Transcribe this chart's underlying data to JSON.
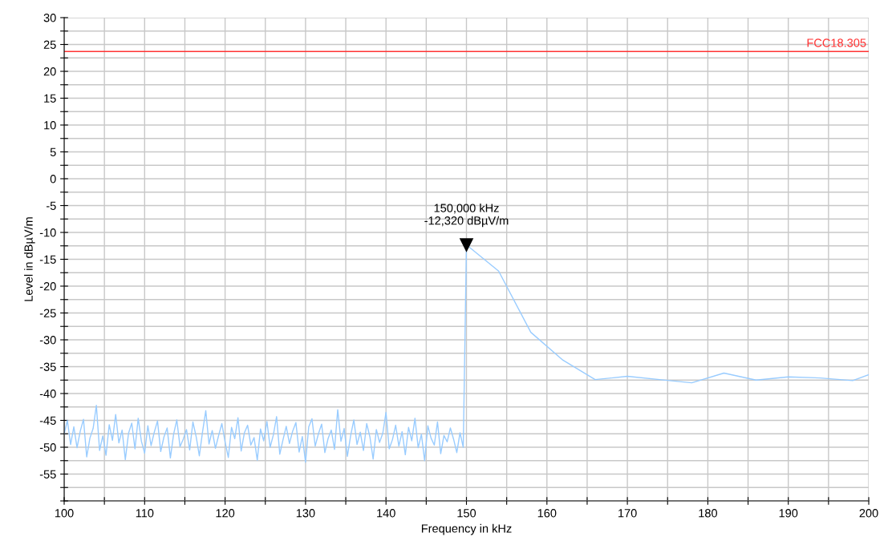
{
  "chart_data": {
    "type": "line",
    "xlabel": "Frequency in kHz",
    "ylabel": "Level in dBµV/m",
    "xlim": [
      100,
      200
    ],
    "xticks": [
      100,
      {
        "value": 105,
        "label": null
      },
      110,
      {
        "value": 115,
        "label": null
      },
      120,
      {
        "value": 125,
        "label": null
      },
      130,
      {
        "value": 135,
        "label": null
      },
      140,
      {
        "value": 145,
        "label": null
      },
      150,
      {
        "value": 155,
        "label": null
      },
      160,
      {
        "value": 165,
        "label": null
      },
      170,
      {
        "value": 175,
        "label": null
      },
      180,
      {
        "value": 185,
        "label": null
      },
      190,
      {
        "value": 195,
        "label": null
      },
      200
    ],
    "ylim": [
      -60,
      30
    ],
    "yticks": [
      {
        "value": -60,
        "label": null
      },
      {
        "value": -57.5,
        "label": null
      },
      -55,
      {
        "value": -52.5,
        "label": null
      },
      -50,
      {
        "value": -47.5,
        "label": null
      },
      -45,
      {
        "value": -42.5,
        "label": null
      },
      -40,
      {
        "value": -37.5,
        "label": null
      },
      -35,
      {
        "value": -32.5,
        "label": null
      },
      -30,
      {
        "value": -27.5,
        "label": null
      },
      -25,
      {
        "value": -22.5,
        "label": null
      },
      -20,
      {
        "value": -17.5,
        "label": null
      },
      -15,
      {
        "value": -12.5,
        "label": null
      },
      -10,
      {
        "value": -7.5,
        "label": null
      },
      -5,
      {
        "value": -2.5,
        "label": null
      },
      0,
      {
        "value": 2.5,
        "label": null
      },
      5,
      {
        "value": 7.5,
        "label": null
      },
      10,
      {
        "value": 12.5,
        "label": null
      },
      15,
      {
        "value": 17.5,
        "label": null
      },
      20,
      {
        "value": 22.5,
        "label": null
      },
      25,
      {
        "value": 27.5,
        "label": null
      },
      30
    ],
    "grid": true,
    "series": [
      {
        "color": "#99ccff",
        "x": [
          100,
          100.4,
          100.8,
          101.2,
          101.6,
          102,
          102.4,
          102.8,
          103.2,
          103.6,
          104,
          104.4,
          104.8,
          105.2,
          105.6,
          106,
          106.4,
          106.8,
          107.2,
          107.6,
          108,
          108.4,
          108.8,
          109.2,
          109.6,
          110,
          110.4,
          110.8,
          111.2,
          111.6,
          112,
          112.4,
          112.8,
          113.2,
          113.6,
          114,
          114.4,
          114.8,
          115.2,
          115.6,
          116,
          116.4,
          116.8,
          117.2,
          117.6,
          118,
          118.4,
          118.8,
          119.2,
          119.6,
          120,
          120.4,
          120.8,
          121.2,
          121.6,
          122,
          122.4,
          122.8,
          123.2,
          123.6,
          124,
          124.4,
          124.8,
          125.2,
          125.6,
          126,
          126.4,
          126.8,
          127.2,
          127.6,
          128,
          128.4,
          128.8,
          129.2,
          129.6,
          130,
          130.4,
          130.8,
          131.2,
          131.6,
          132,
          132.4,
          132.8,
          133.2,
          133.6,
          134,
          134.4,
          134.8,
          135.2,
          135.6,
          136,
          136.4,
          136.8,
          137.2,
          137.6,
          138,
          138.4,
          138.8,
          139.2,
          139.6,
          140,
          140.4,
          140.8,
          141.2,
          141.6,
          142,
          142.4,
          142.8,
          143.2,
          143.6,
          144,
          144.4,
          144.8,
          145.2,
          145.6,
          146,
          146.4,
          146.8,
          147.2,
          147.6,
          148,
          148.4,
          148.8,
          149.2,
          149.6,
          150,
          154,
          158,
          162,
          166,
          170,
          174,
          178,
          182,
          186,
          190,
          194,
          198,
          200
        ],
        "values": [
          -47.5,
          -45.0,
          -49.5,
          -46.2,
          -50.1,
          -47.0,
          -44.8,
          -51.8,
          -48.3,
          -46.5,
          -42.2,
          -50.6,
          -47.9,
          -51.5,
          -45.8,
          -48.7,
          -43.9,
          -49.2,
          -46.8,
          -52.3,
          -47.4,
          -45.5,
          -50.3,
          -44.6,
          -48.9,
          -51.1,
          -46.0,
          -49.7,
          -47.2,
          -45.1,
          -50.8,
          -48.1,
          -46.4,
          -52.0,
          -47.6,
          -44.9,
          -49.9,
          -48.5,
          -46.7,
          -50.5,
          -45.3,
          -48.0,
          -51.6,
          -47.1,
          -43.2,
          -49.4,
          -46.9,
          -50.2,
          -47.8,
          -45.6,
          -49.0,
          -51.9,
          -46.3,
          -48.4,
          -44.5,
          -50.7,
          -47.3,
          -45.9,
          -49.6,
          -48.2,
          -52.4,
          -46.6,
          -48.8,
          -45.2,
          -50.0,
          -47.7,
          -44.3,
          -51.3,
          -48.6,
          -46.1,
          -49.3,
          -47.0,
          -45.4,
          -50.9,
          -48.0,
          -52.8,
          -46.2,
          -44.7,
          -49.8,
          -47.5,
          -45.7,
          -51.0,
          -48.4,
          -46.8,
          -50.4,
          -43.0,
          -48.9,
          -46.5,
          -51.7,
          -47.9,
          -44.9,
          -49.5,
          -47.2,
          -50.6,
          -45.6,
          -48.1,
          -52.2,
          -46.7,
          -49.1,
          -47.4,
          -43.5,
          -50.3,
          -48.6,
          -45.9,
          -49.8,
          -47.1,
          -51.4,
          -46.3,
          -48.8,
          -44.6,
          -50.1,
          -47.6,
          -52.5,
          -46.0,
          -48.3,
          -49.6,
          -45.3,
          -51.2,
          -47.8,
          -49.0,
          -46.4,
          -48.5,
          -51.0,
          -47.3,
          -50.0,
          -12.32,
          -17.2,
          -28.6,
          -33.8,
          -37.4,
          -36.8,
          -37.4,
          -38.0,
          -36.2,
          -37.5,
          -36.9,
          -37.1,
          -37.6,
          -36.5
        ]
      }
    ],
    "ref_lines": [
      {
        "axis": "y",
        "value": 23.7,
        "label": "FCC18.305",
        "color": "#ff3333"
      }
    ],
    "annotations": [
      {
        "text": "150,000 kHz\n-12,320 dBµV/m",
        "x": 150,
        "y": -12.32
      }
    ]
  }
}
